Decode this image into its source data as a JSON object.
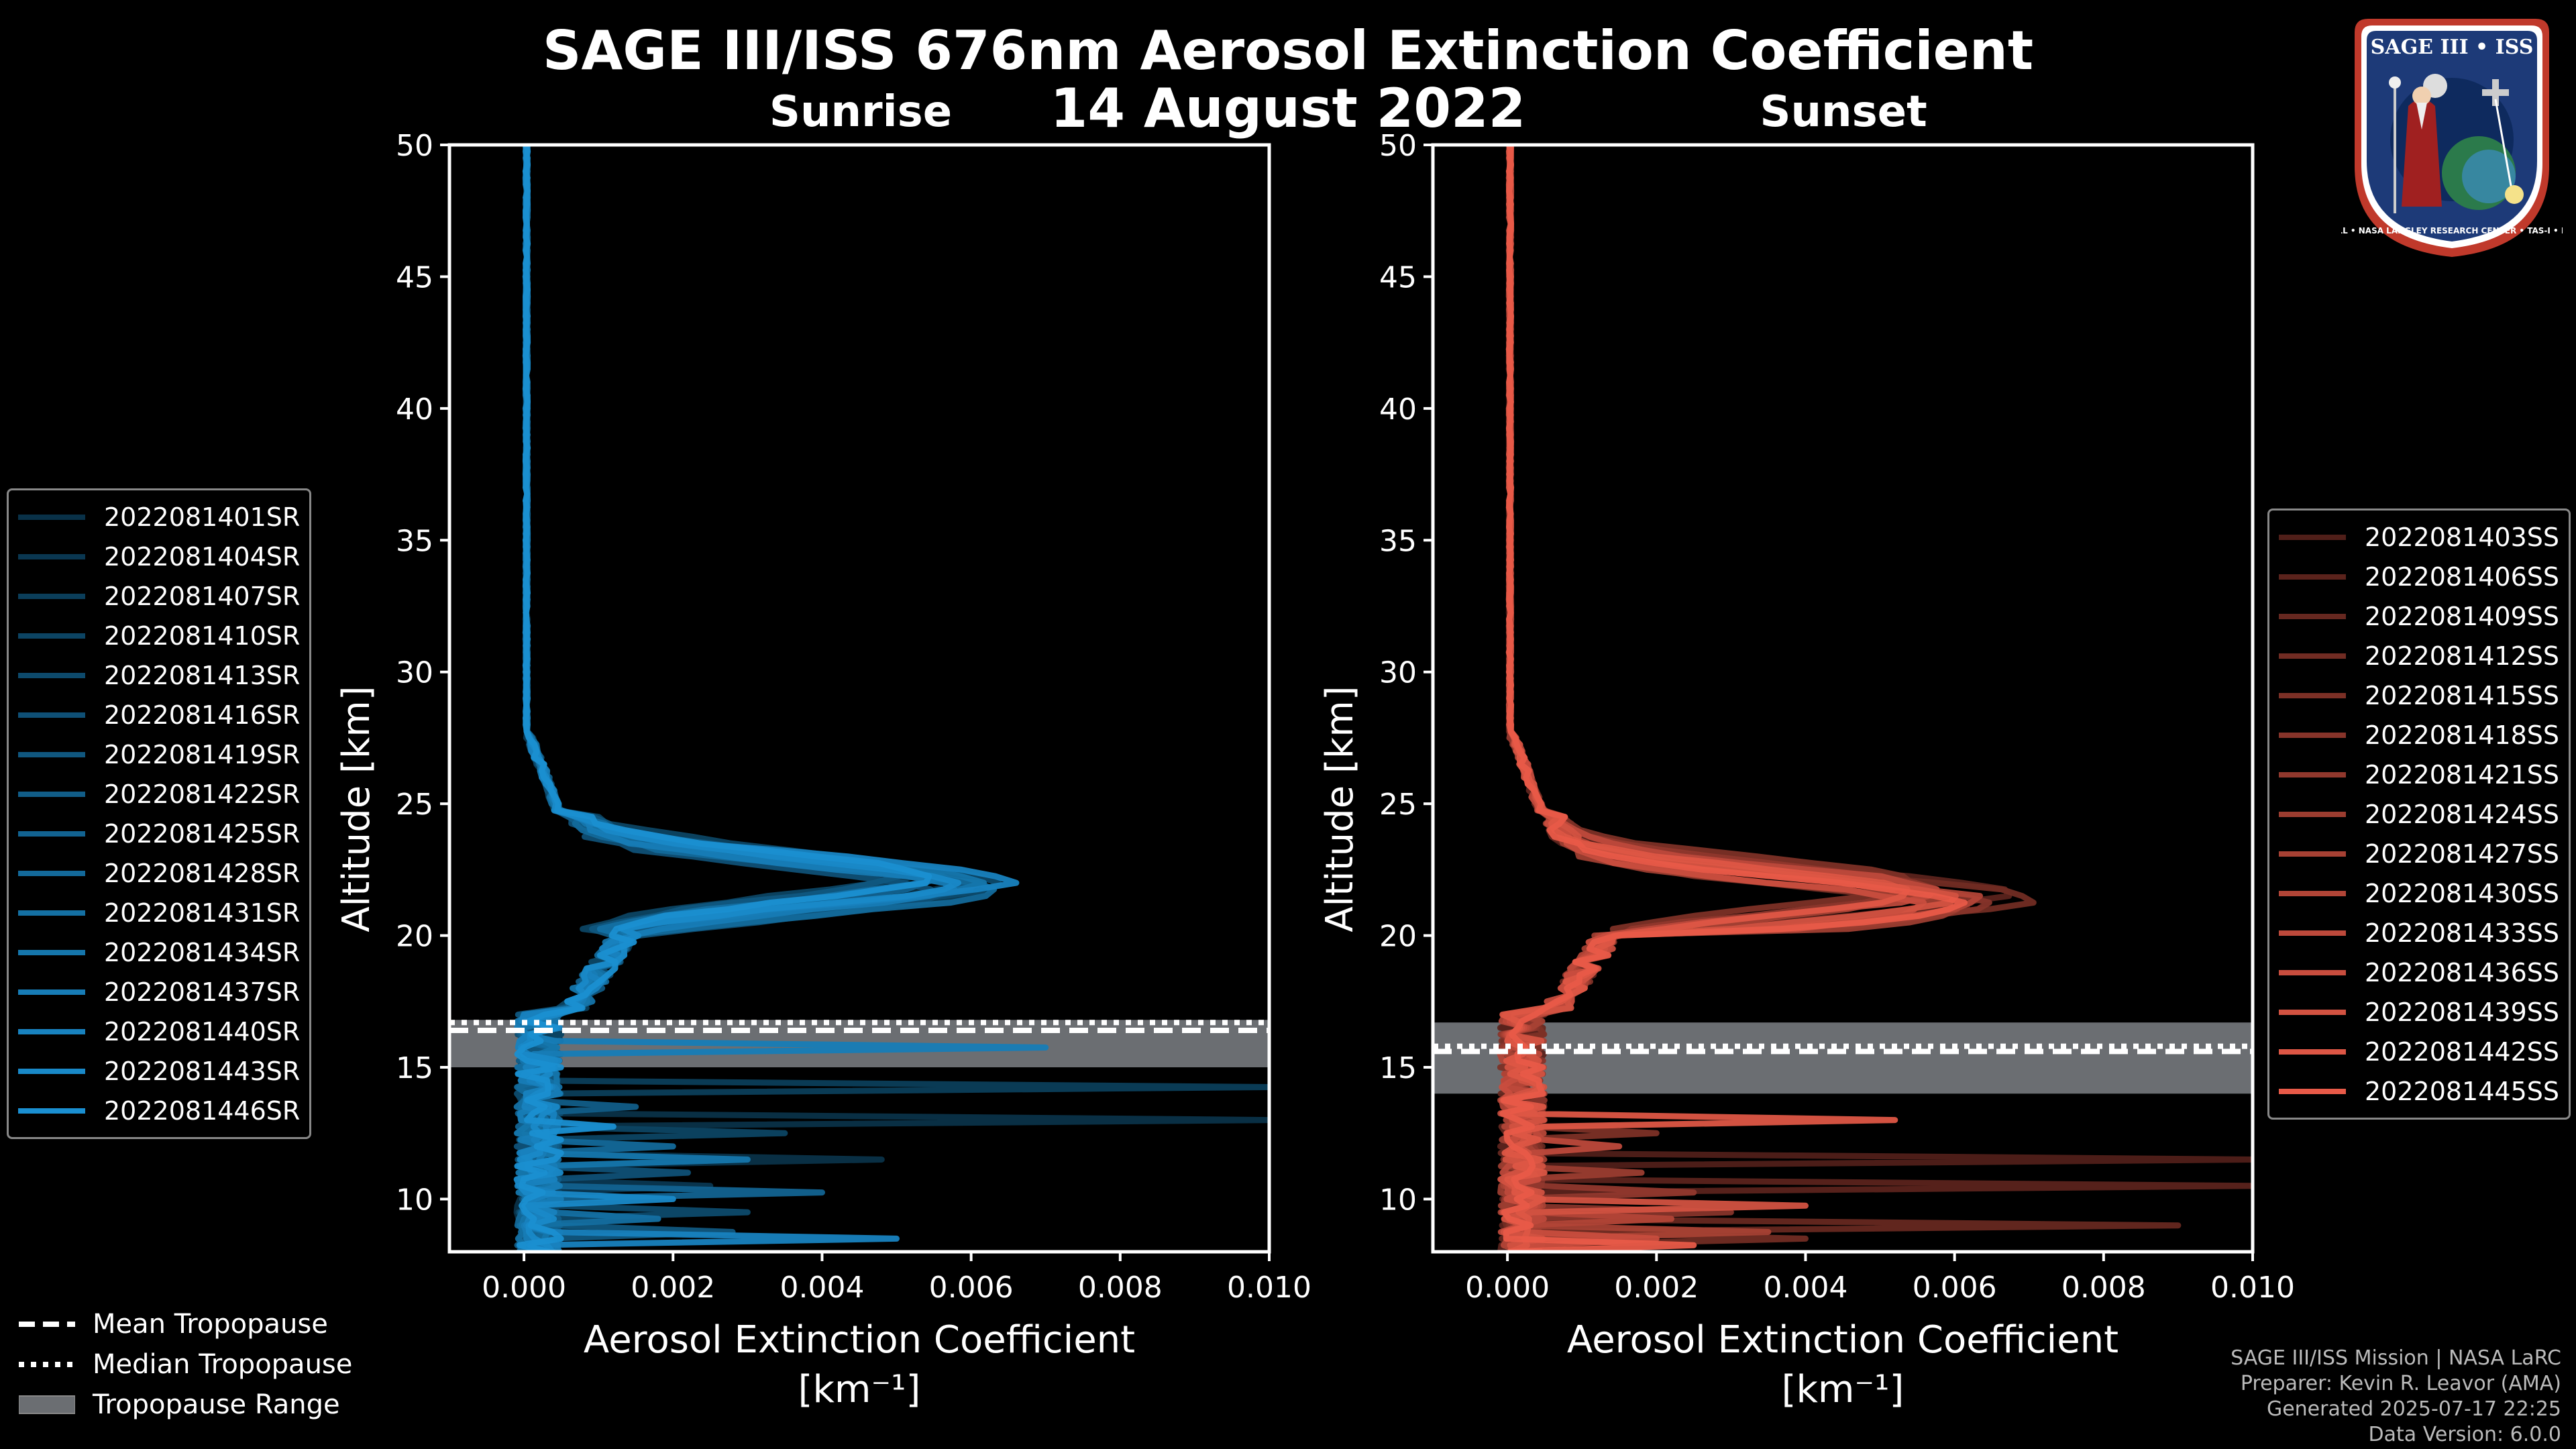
{
  "title": "SAGE III/ISS 676nm Aerosol Extinction Coefficient",
  "date": "14 August 2022",
  "colors": {
    "sunrise": "#1a8fd1",
    "sunset": "#e85a48",
    "range": "#6b6e72",
    "background": "#000000"
  },
  "chart_data": [
    {
      "type": "line",
      "subtitle": "Sunrise",
      "xlabel": "Aerosol Extinction Coefficient",
      "xunit": "[km⁻¹]",
      "ylabel": "Altitude [km]",
      "xlim": [
        -0.001,
        0.01
      ],
      "ylim": [
        8,
        50
      ],
      "xticks": [
        0.0,
        0.002,
        0.004,
        0.006,
        0.008,
        0.01
      ],
      "xtick_labels": [
        "0.000",
        "0.002",
        "0.004",
        "0.006",
        "0.008",
        "0.010"
      ],
      "yticks": [
        10,
        15,
        20,
        25,
        30,
        35,
        40,
        45,
        50
      ],
      "ytick_labels": [
        "10",
        "15",
        "20",
        "25",
        "30",
        "35",
        "40",
        "45",
        "50"
      ],
      "mean_tropopause_km": 16.4,
      "median_tropopause_km": 16.7,
      "tropopause_range_km": [
        15.0,
        16.8
      ],
      "series": [
        {
          "name": "2022081401SR",
          "peak_alt": 22.0,
          "peak_val": 0.0052,
          "spikes": [
            [
              13.1,
              0.01
            ],
            [
              11.6,
              0.0048
            ]
          ]
        },
        {
          "name": "2022081404SR",
          "peak_alt": 22.2,
          "peak_val": 0.0048,
          "spikes": [
            [
              10.6,
              0.0025
            ]
          ]
        },
        {
          "name": "2022081407SR",
          "peak_alt": 21.8,
          "peak_val": 0.0055,
          "spikes": [
            [
              14.2,
              0.01
            ]
          ]
        },
        {
          "name": "2022081410SR",
          "peak_alt": 22.4,
          "peak_val": 0.0046,
          "spikes": [
            [
              12.4,
              0.0035
            ]
          ]
        },
        {
          "name": "2022081413SR",
          "peak_alt": 22.0,
          "peak_val": 0.0058,
          "spikes": [
            [
              9.6,
              0.003
            ]
          ]
        },
        {
          "name": "2022081416SR",
          "peak_alt": 21.6,
          "peak_val": 0.005,
          "spikes": [
            [
              11.0,
              0.0022
            ]
          ]
        },
        {
          "name": "2022081419SR",
          "peak_alt": 22.3,
          "peak_val": 0.0044,
          "spikes": [
            [
              8.8,
              0.0028
            ]
          ]
        },
        {
          "name": "2022081422SR",
          "peak_alt": 21.9,
          "peak_val": 0.0053,
          "spikes": [
            [
              13.6,
              0.0015
            ]
          ]
        },
        {
          "name": "2022081425SR",
          "peak_alt": 22.1,
          "peak_val": 0.0049,
          "spikes": [
            [
              10.2,
              0.004
            ]
          ]
        },
        {
          "name": "2022081428SR",
          "peak_alt": 21.7,
          "peak_val": 0.0056,
          "spikes": [
            [
              12.0,
              0.002
            ]
          ]
        },
        {
          "name": "2022081431SR",
          "peak_alt": 22.2,
          "peak_val": 0.0047,
          "spikes": [
            [
              9.2,
              0.0018
            ]
          ]
        },
        {
          "name": "2022081434SR",
          "peak_alt": 22.0,
          "peak_val": 0.0054,
          "spikes": [
            [
              11.4,
              0.003
            ]
          ]
        },
        {
          "name": "2022081437SR",
          "peak_alt": 21.8,
          "peak_val": 0.005,
          "spikes": [
            [
              15.8,
              0.007
            ]
          ]
        },
        {
          "name": "2022081440SR",
          "peak_alt": 22.1,
          "peak_val": 0.0059,
          "spikes": [
            [
              8.4,
              0.005
            ]
          ]
        },
        {
          "name": "2022081443SR",
          "peak_alt": 22.0,
          "peak_val": 0.0051,
          "spikes": [
            [
              10.0,
              0.002
            ]
          ]
        },
        {
          "name": "2022081446SR",
          "peak_alt": 22.2,
          "peak_val": 0.0048,
          "spikes": [
            [
              12.8,
              0.0012
            ]
          ]
        }
      ]
    },
    {
      "type": "line",
      "subtitle": "Sunset",
      "xlabel": "Aerosol Extinction Coefficient",
      "xunit": "[km⁻¹]",
      "ylabel": "Altitude [km]",
      "xlim": [
        -0.001,
        0.01
      ],
      "ylim": [
        8,
        50
      ],
      "xticks": [
        0.0,
        0.002,
        0.004,
        0.006,
        0.008,
        0.01
      ],
      "xtick_labels": [
        "0.000",
        "0.002",
        "0.004",
        "0.006",
        "0.008",
        "0.010"
      ],
      "yticks": [
        10,
        15,
        20,
        25,
        30,
        35,
        40,
        45,
        50
      ],
      "ytick_labels": [
        "10",
        "15",
        "20",
        "25",
        "30",
        "35",
        "40",
        "45",
        "50"
      ],
      "mean_tropopause_km": 15.6,
      "median_tropopause_km": 15.8,
      "tropopause_range_km": [
        14.0,
        16.7
      ],
      "series": [
        {
          "name": "2022081403SS",
          "peak_alt": 21.2,
          "peak_val": 0.0056,
          "spikes": [
            [
              11.6,
              0.01
            ]
          ]
        },
        {
          "name": "2022081406SS",
          "peak_alt": 21.6,
          "peak_val": 0.006,
          "spikes": [
            [
              10.6,
              0.01
            ]
          ]
        },
        {
          "name": "2022081409SS",
          "peak_alt": 21.0,
          "peak_val": 0.0052,
          "spikes": [
            [
              9.0,
              0.009
            ]
          ]
        },
        {
          "name": "2022081412SS",
          "peak_alt": 21.4,
          "peak_val": 0.0064,
          "spikes": [
            [
              8.6,
              0.004
            ]
          ]
        },
        {
          "name": "2022081415SS",
          "peak_alt": 22.0,
          "peak_val": 0.0048,
          "spikes": [
            [
              12.4,
              0.002
            ]
          ]
        },
        {
          "name": "2022081418SS",
          "peak_alt": 21.2,
          "peak_val": 0.0058,
          "spikes": [
            [
              9.6,
              0.003
            ]
          ]
        },
        {
          "name": "2022081421SS",
          "peak_alt": 21.8,
          "peak_val": 0.005,
          "spikes": [
            [
              10.2,
              0.0025
            ]
          ]
        },
        {
          "name": "2022081424SS",
          "peak_alt": 21.0,
          "peak_val": 0.0054,
          "spikes": [
            [
              11.0,
              0.0018
            ]
          ]
        },
        {
          "name": "2022081427SS",
          "peak_alt": 21.5,
          "peak_val": 0.0046,
          "spikes": [
            [
              8.8,
              0.0035
            ]
          ]
        },
        {
          "name": "2022081430SS",
          "peak_alt": 21.3,
          "peak_val": 0.0057,
          "spikes": [
            [
              9.2,
              0.0022
            ]
          ]
        },
        {
          "name": "2022081433SS",
          "peak_alt": 21.7,
          "peak_val": 0.0051,
          "spikes": [
            [
              12.0,
              0.0015
            ]
          ]
        },
        {
          "name": "2022081436SS",
          "peak_alt": 21.1,
          "peak_val": 0.0049,
          "spikes": [
            [
              8.4,
              0.002
            ]
          ]
        },
        {
          "name": "2022081439SS",
          "peak_alt": 21.4,
          "peak_val": 0.0053,
          "spikes": [
            [
              9.8,
              0.004
            ]
          ]
        },
        {
          "name": "2022081442SS",
          "peak_alt": 21.6,
          "peak_val": 0.0047,
          "spikes": [
            [
              13.0,
              0.0052
            ]
          ]
        },
        {
          "name": "2022081445SS",
          "peak_alt": 21.2,
          "peak_val": 0.0055,
          "spikes": [
            [
              8.2,
              0.0025
            ]
          ]
        }
      ]
    }
  ],
  "legend_bottom": {
    "mean": "Mean Tropopause",
    "median": "Median Tropopause",
    "range": "Tropopause Range"
  },
  "credits": [
    "SAGE III/ISS Mission | NASA LaRC",
    "Preparer: Kevin R. Leavor (AMA)",
    "Generated 2025-07-17 22:25",
    "Data Version: 6.0.0"
  ],
  "logo": {
    "top_text": "SAGE III • ISS",
    "ring_text": "BALL • NASA LANGLEY RESEARCH CENTER • TAS-I • ESA"
  }
}
